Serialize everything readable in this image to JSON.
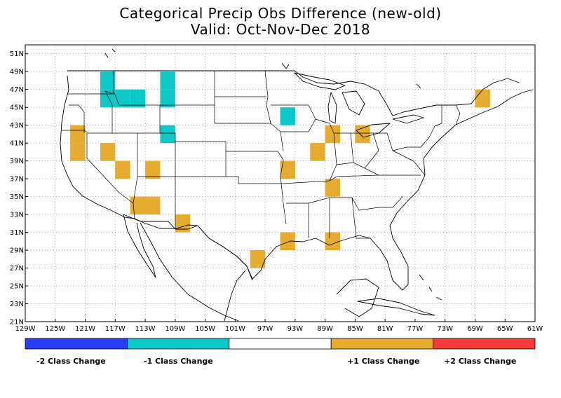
{
  "header": {
    "title": "Categorical Precip Obs Difference (new-old)",
    "subtitle": "Valid: Oct-Nov-Dec 2018"
  },
  "map": {
    "lon_range": [
      -129,
      -61
    ],
    "lat_range": [
      21,
      52
    ],
    "grid": "dotted",
    "lat_ticks": [
      {
        "v": 51,
        "label": "51N"
      },
      {
        "v": 49,
        "label": "49N"
      },
      {
        "v": 47,
        "label": "47N"
      },
      {
        "v": 45,
        "label": "45N"
      },
      {
        "v": 43,
        "label": "43N"
      },
      {
        "v": 41,
        "label": "41N"
      },
      {
        "v": 39,
        "label": "39N"
      },
      {
        "v": 37,
        "label": "37N"
      },
      {
        "v": 35,
        "label": "35N"
      },
      {
        "v": 33,
        "label": "33N"
      },
      {
        "v": 31,
        "label": "31N"
      },
      {
        "v": 29,
        "label": "29N"
      },
      {
        "v": 27,
        "label": "27N"
      },
      {
        "v": 25,
        "label": "25N"
      },
      {
        "v": 23,
        "label": "23N"
      },
      {
        "v": 21,
        "label": "21N"
      }
    ],
    "lon_ticks": [
      {
        "v": -129,
        "label": "129W"
      },
      {
        "v": -125,
        "label": "125W"
      },
      {
        "v": -121,
        "label": "121W"
      },
      {
        "v": -117,
        "label": "117W"
      },
      {
        "v": -113,
        "label": "113W"
      },
      {
        "v": -109,
        "label": "109W"
      },
      {
        "v": -105,
        "label": "105W"
      },
      {
        "v": -101,
        "label": "101W"
      },
      {
        "v": -97,
        "label": "97W"
      },
      {
        "v": -93,
        "label": "93W"
      },
      {
        "v": -89,
        "label": "89W"
      },
      {
        "v": -85,
        "label": "85W"
      },
      {
        "v": -81,
        "label": "81W"
      },
      {
        "v": -77,
        "label": "77W"
      },
      {
        "v": -73,
        "label": "73W"
      },
      {
        "v": -69,
        "label": "69W"
      },
      {
        "v": -65,
        "label": "65W"
      },
      {
        "v": -61,
        "label": "61W"
      }
    ]
  },
  "chart_data": {
    "type": "heatmap",
    "title": "Categorical Precip Obs Difference (new-old)",
    "subtitle": "Valid: Oct-Nov-Dec 2018",
    "cell_size_deg": 2,
    "categories": [
      {
        "value": -2,
        "label": "-2 Class Change",
        "color": "#2a3df5"
      },
      {
        "value": -1,
        "label": "-1 Class Change",
        "color": "#0ec8c8"
      },
      {
        "value": 0,
        "label": "",
        "color": "#ffffff"
      },
      {
        "value": 1,
        "label": "+1 Class Change",
        "color": "#e6ac30"
      },
      {
        "value": 2,
        "label": "+2 Class Change",
        "color": "#f53c3c"
      }
    ],
    "cells": [
      {
        "lon": -118,
        "lat": 48,
        "value": -1
      },
      {
        "lon": -118,
        "lat": 46,
        "value": -1
      },
      {
        "lon": -116,
        "lat": 46,
        "value": -1
      },
      {
        "lon": -114,
        "lat": 46,
        "value": -1
      },
      {
        "lon": -110,
        "lat": 48,
        "value": -1
      },
      {
        "lon": -110,
        "lat": 46,
        "value": -1
      },
      {
        "lon": -110,
        "lat": 42,
        "value": -1
      },
      {
        "lon": -94,
        "lat": 44,
        "value": -1
      },
      {
        "lon": -122,
        "lat": 42,
        "value": 1
      },
      {
        "lon": -122,
        "lat": 40,
        "value": 1
      },
      {
        "lon": -118,
        "lat": 40,
        "value": 1
      },
      {
        "lon": -116,
        "lat": 38,
        "value": 1
      },
      {
        "lon": -112,
        "lat": 38,
        "value": 1
      },
      {
        "lon": -114,
        "lat": 34,
        "value": 1
      },
      {
        "lon": -112,
        "lat": 34,
        "value": 1
      },
      {
        "lon": -108,
        "lat": 32,
        "value": 1
      },
      {
        "lon": -98,
        "lat": 28,
        "value": 1
      },
      {
        "lon": -94,
        "lat": 38,
        "value": 1
      },
      {
        "lon": -94,
        "lat": 30,
        "value": 1
      },
      {
        "lon": -90,
        "lat": 40,
        "value": 1
      },
      {
        "lon": -88,
        "lat": 42,
        "value": 1
      },
      {
        "lon": -88,
        "lat": 36,
        "value": 1
      },
      {
        "lon": -88,
        "lat": 30,
        "value": 1
      },
      {
        "lon": -84,
        "lat": 42,
        "value": 1
      },
      {
        "lon": -68,
        "lat": 46,
        "value": 1
      }
    ]
  },
  "legend": {
    "labels": [
      "-2 Class Change",
      "-1 Class Change",
      "+1 Class Change",
      "+2 Class Change"
    ]
  }
}
